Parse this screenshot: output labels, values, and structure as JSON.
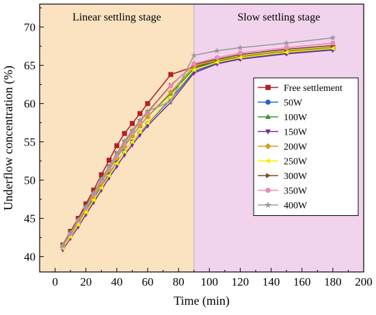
{
  "chart_data": {
    "type": "line",
    "xlabel": "Time (min)",
    "ylabel": "Underflow concentration (%)",
    "xlim": [
      -10,
      200
    ],
    "ylim": [
      38,
      73
    ],
    "xticks": [
      0,
      20,
      40,
      60,
      80,
      100,
      120,
      140,
      160,
      180,
      200
    ],
    "yticks": [
      40,
      45,
      50,
      55,
      60,
      65,
      70
    ],
    "grid": false,
    "legend_position": "right",
    "regions": [
      {
        "label": "Linear settling stage",
        "x_range": [
          -10,
          90
        ],
        "color": "#fbe3c2"
      },
      {
        "label": "Slow settling stage",
        "x_range": [
          90,
          200
        ],
        "color": "#f2d3ee"
      }
    ],
    "x": [
      5,
      10,
      15,
      20,
      25,
      30,
      35,
      40,
      45,
      50,
      55,
      60,
      75,
      90,
      105,
      120,
      150,
      180
    ],
    "series": [
      {
        "name": "Free settlement",
        "color": "#b22222",
        "marker": "square",
        "values": [
          41.5,
          43.3,
          45.0,
          46.9,
          48.7,
          50.7,
          52.6,
          54.5,
          56.1,
          57.4,
          58.7,
          60.0,
          63.8,
          64.8,
          65.5,
          66.1,
          66.8,
          67.3
        ]
      },
      {
        "name": "50W",
        "color": "#1f66c9",
        "marker": "circle",
        "values": [
          41.2,
          42.8,
          44.3,
          46.0,
          47.6,
          49.2,
          50.8,
          52.3,
          53.7,
          55.0,
          56.2,
          57.4,
          60.6,
          64.2,
          65.3,
          65.9,
          66.6,
          67.1
        ]
      },
      {
        "name": "100W",
        "color": "#2a9a2a",
        "marker": "triangle-up",
        "values": [
          41.4,
          43.0,
          44.6,
          46.3,
          48.0,
          49.7,
          51.4,
          53.0,
          54.5,
          55.8,
          57.1,
          58.3,
          61.3,
          64.6,
          65.5,
          66.1,
          66.8,
          67.3
        ]
      },
      {
        "name": "150W",
        "color": "#7b2a9a",
        "marker": "triangle-down",
        "values": [
          40.9,
          42.4,
          43.9,
          45.5,
          47.1,
          48.7,
          50.3,
          51.8,
          53.3,
          54.6,
          55.9,
          57.1,
          60.2,
          64.0,
          65.2,
          65.8,
          66.5,
          67.0
        ]
      },
      {
        "name": "200W",
        "color": "#d99a1a",
        "marker": "diamond",
        "values": [
          41.3,
          42.9,
          44.5,
          46.2,
          47.9,
          49.6,
          51.3,
          52.9,
          54.4,
          55.8,
          57.1,
          58.3,
          61.5,
          64.9,
          65.7,
          66.2,
          66.9,
          67.4
        ]
      },
      {
        "name": "250W",
        "color": "#f2f200",
        "marker": "triangle-left",
        "values": [
          41.1,
          42.6,
          44.2,
          45.8,
          47.4,
          49.0,
          50.6,
          52.2,
          53.7,
          55.0,
          56.3,
          57.5,
          60.8,
          64.4,
          65.4,
          66.0,
          66.7,
          67.2
        ]
      },
      {
        "name": "300W",
        "color": "#7a4a1a",
        "marker": "triangle-right",
        "values": [
          41.6,
          43.2,
          44.8,
          46.6,
          48.3,
          50.1,
          51.8,
          53.5,
          55.0,
          56.4,
          57.7,
          58.9,
          62.4,
          65.1,
          65.8,
          66.4,
          67.1,
          67.6
        ]
      },
      {
        "name": "350W",
        "color": "#e98ab8",
        "marker": "circle",
        "values": [
          41.4,
          43.0,
          44.7,
          46.4,
          48.2,
          49.9,
          51.6,
          53.2,
          54.8,
          56.2,
          57.6,
          58.8,
          62.3,
          65.2,
          66.0,
          66.6,
          67.3,
          67.9
        ]
      },
      {
        "name": "400W",
        "color": "#9a9a9a",
        "marker": "star",
        "values": [
          41.5,
          43.1,
          44.8,
          46.5,
          48.3,
          50.1,
          51.8,
          53.5,
          55.1,
          56.5,
          57.8,
          59.0,
          60.3,
          66.3,
          66.9,
          67.3,
          67.9,
          68.6
        ]
      }
    ]
  }
}
